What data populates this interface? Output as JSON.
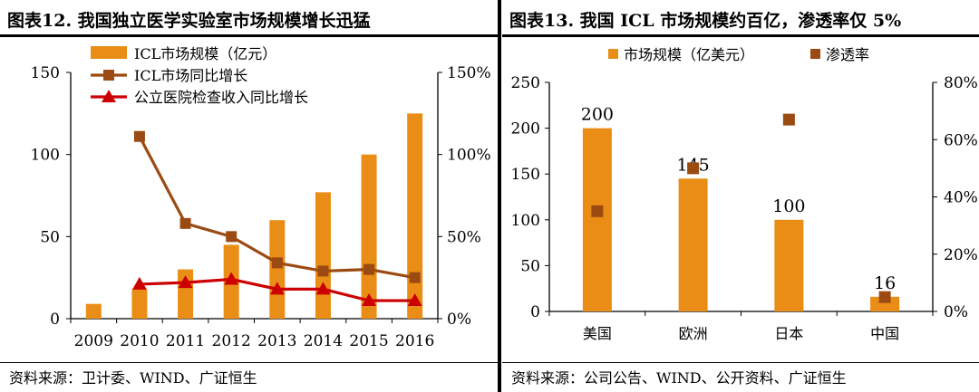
{
  "colors": {
    "bar": "#e98d16",
    "line_brown": "#9b4a12",
    "line_red": "#cc0000",
    "rule": "#000000"
  },
  "left": {
    "title": "图表12.  我国独立医学实验室市场规模增长迅猛",
    "source": "资料来源：卫计委、WIND、广证恒生"
  },
  "right": {
    "title": "图表13.  我国 ICL 市场规模约百亿，渗透率仅 5%",
    "source": "资料来源：公司公告、WIND、公开资料、广证恒生"
  },
  "chart_data": [
    {
      "type": "bar",
      "title": "我国独立医学实验室市场规模增长迅猛",
      "categories": [
        "2009",
        "2010",
        "2011",
        "2012",
        "2013",
        "2014",
        "2015",
        "2016"
      ],
      "series": [
        {
          "name": "ICL市场规模（亿元）",
          "type": "bar",
          "axis": "left",
          "values": [
            9,
            18,
            30,
            45,
            60,
            77,
            100,
            125
          ]
        },
        {
          "name": "ICL市场同比增长",
          "type": "line",
          "axis": "right",
          "values": [
            null,
            111,
            58,
            50,
            34,
            29,
            30,
            25
          ]
        },
        {
          "name": "公立医院检查收入同比增长",
          "type": "line",
          "axis": "right",
          "values": [
            null,
            21,
            22,
            24,
            18,
            18,
            11,
            11
          ]
        }
      ],
      "ylim_left": [
        0,
        150
      ],
      "yticks_left": [
        "0",
        "50",
        "100",
        "150"
      ],
      "ylim_right": [
        0,
        150
      ],
      "yticks_right": [
        "0%",
        "50%",
        "100%",
        "150%"
      ],
      "legend": "top-left"
    },
    {
      "type": "bar",
      "title": "我国 ICL 市场规模约百亿，渗透率仅 5%",
      "categories": [
        "美国",
        "欧洲",
        "日本",
        "中国"
      ],
      "series": [
        {
          "name": "市场规模（亿美元）",
          "type": "bar",
          "axis": "left",
          "values": [
            200,
            145,
            100,
            16
          ],
          "labels": [
            "200",
            "145",
            "100",
            "16"
          ]
        },
        {
          "name": "渗透率",
          "type": "scatter",
          "axis": "right",
          "values": [
            35,
            50,
            67,
            5
          ]
        }
      ],
      "ylim_left": [
        0,
        250
      ],
      "yticks_left": [
        "0",
        "50",
        "100",
        "150",
        "200",
        "250"
      ],
      "ylim_right": [
        0,
        80
      ],
      "yticks_right": [
        "0%",
        "20%",
        "40%",
        "60%",
        "80%"
      ],
      "legend": "top"
    }
  ]
}
